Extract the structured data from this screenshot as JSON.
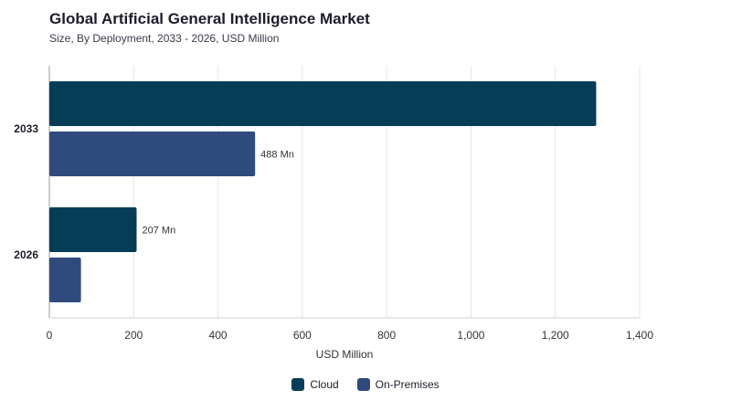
{
  "chart_data": {
    "type": "bar",
    "orientation": "horizontal",
    "title": "Global Artificial General Intelligence Market",
    "subtitle": "Size, By Deployment, 2033 - 2026, USD Million",
    "categories": [
      "2033",
      "2026"
    ],
    "series": [
      {
        "name": "Cloud",
        "color": "#053d57",
        "values": [
          1297,
          207
        ],
        "labels": [
          "",
          "207 Mn"
        ]
      },
      {
        "name": "On-Premises",
        "color": "#2f4a7d",
        "values": [
          488,
          75
        ],
        "labels": [
          "488 Mn",
          ""
        ]
      }
    ],
    "xlabel": "USD Million",
    "ylabel": "",
    "xlim": [
      0,
      1400
    ],
    "xticks": [
      {
        "value": 0,
        "label": "0"
      },
      {
        "value": 200,
        "label": "200"
      },
      {
        "value": 400,
        "label": "400"
      },
      {
        "value": 600,
        "label": "600"
      },
      {
        "value": 800,
        "label": "800"
      },
      {
        "value": 1000,
        "label": "1,000"
      },
      {
        "value": 1200,
        "label": "1,200"
      },
      {
        "value": 1400,
        "label": "1,400"
      }
    ],
    "grid": true,
    "legend_position": "bottom"
  }
}
